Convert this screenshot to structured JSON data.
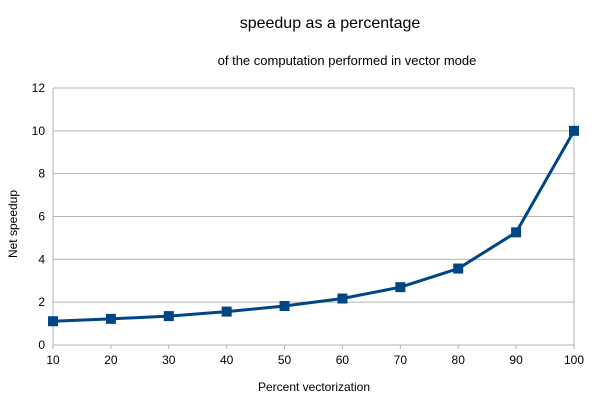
{
  "chart_data": {
    "type": "line",
    "title": "speedup as a percentage",
    "subtitle": "of the computation performed in vector mode",
    "xlabel": "Percent vectorization",
    "ylabel": "Net speedup",
    "x": [
      10,
      20,
      30,
      40,
      50,
      60,
      70,
      80,
      90,
      100
    ],
    "series": [
      {
        "values": [
          1.11,
          1.22,
          1.35,
          1.56,
          1.82,
          2.17,
          2.7,
          3.57,
          5.26,
          10.0
        ]
      }
    ],
    "xlim": [
      10,
      100
    ],
    "ylim": [
      0,
      12
    ],
    "xticks": [
      "10",
      "20",
      "30",
      "40",
      "50",
      "60",
      "70",
      "80",
      "90",
      "100"
    ],
    "yticks": [
      "0",
      "2",
      "4",
      "6",
      "8",
      "10",
      "12"
    ],
    "grid": true,
    "legend": "none",
    "marker": "square",
    "line_color": "#004586"
  }
}
